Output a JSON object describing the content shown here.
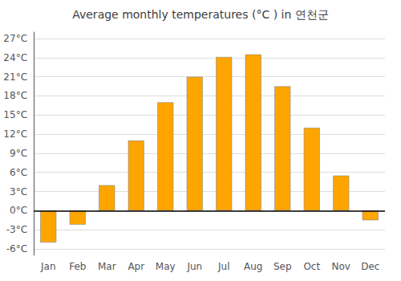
{
  "chart_data": {
    "type": "bar",
    "title": "Average monthly temperatures (°C ) in 연천군",
    "categories": [
      "Jan",
      "Feb",
      "Mar",
      "Apr",
      "May",
      "Jun",
      "Jul",
      "Aug",
      "Sep",
      "Oct",
      "Nov",
      "Dec"
    ],
    "values": [
      -5.0,
      -2.2,
      4.0,
      11.0,
      17.0,
      21.0,
      24.1,
      24.5,
      19.5,
      13.0,
      5.5,
      -1.5
    ],
    "color": "#FFA500",
    "ylim": [
      -7,
      28
    ],
    "yticks": [
      {
        "value": -6,
        "label": "-6°C"
      },
      {
        "value": -3,
        "label": "-3°C"
      },
      {
        "value": 0,
        "label": "0°C"
      },
      {
        "value": 3,
        "label": "3°C"
      },
      {
        "value": 6,
        "label": "6°C"
      },
      {
        "value": 9,
        "label": "9°C"
      },
      {
        "value": 12,
        "label": "12°C"
      },
      {
        "value": 15,
        "label": "15°C"
      },
      {
        "value": 18,
        "label": "18°C"
      },
      {
        "value": 21,
        "label": "21°C"
      },
      {
        "value": 24,
        "label": "24°C"
      },
      {
        "value": 27,
        "label": "27°C"
      }
    ],
    "grid": true
  }
}
